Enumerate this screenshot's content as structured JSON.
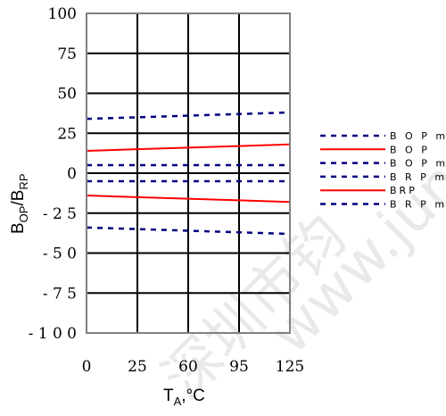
{
  "chart_data": {
    "type": "line",
    "x": [
      0,
      25,
      60,
      95,
      125
    ],
    "x_tick_labels": [
      "0",
      "25",
      "60",
      "95",
      "125"
    ],
    "y_tick_labels": [
      "100",
      "75",
      "50",
      "25",
      "0",
      "- 2 5",
      "- 5 0",
      "- 7 5",
      "- 1 0 0"
    ],
    "ylim": [
      -100,
      100
    ],
    "xlim": [
      0,
      125
    ],
    "xlabel": {
      "main": "T",
      "sub": "A",
      "tail": ",°C"
    },
    "ylabel": {
      "main1": "B",
      "sub1": "OP",
      "slash": "/B",
      "sub2": "RP"
    },
    "grid": true,
    "legend_position": "right",
    "series": [
      {
        "name": "B O P m",
        "style": "dashed",
        "color": "#000080",
        "values": [
          34,
          35,
          36,
          37,
          38
        ]
      },
      {
        "name": "B O P",
        "style": "solid",
        "color": "#ff0000",
        "values": [
          14,
          15,
          16,
          17,
          18
        ]
      },
      {
        "name": "B O P m",
        "style": "dashed",
        "color": "#000080",
        "values": [
          5,
          5,
          5,
          5,
          5
        ]
      },
      {
        "name": "B R P m",
        "style": "dashed",
        "color": "#000080",
        "values": [
          -5,
          -5,
          -5,
          -5,
          -5
        ]
      },
      {
        "name": "BRP",
        "style": "solid",
        "color": "#ff0000",
        "values": [
          -14,
          -15,
          -16,
          -17,
          -18
        ]
      },
      {
        "name": "B R P m",
        "style": "dashed",
        "color": "#000080",
        "values": [
          -34,
          -35,
          -36,
          -37,
          -38
        ]
      }
    ]
  },
  "watermark": {
    "text1": "深圳市钧",
    "text2": "www.jun"
  }
}
